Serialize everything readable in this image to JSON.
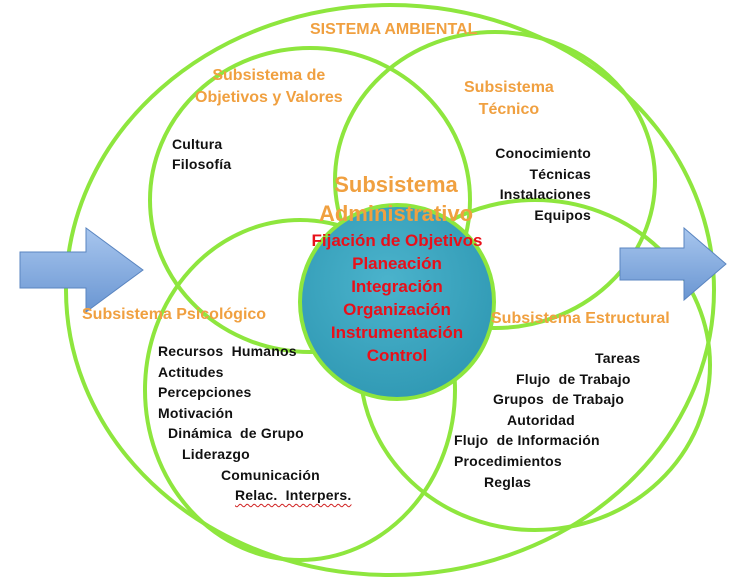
{
  "title": "SISTEMA AMBIENTAL",
  "subsystems": {
    "objetivos": {
      "line1": "Subsistema de",
      "line2": "Objetivos y Valores",
      "items": [
        "Cultura",
        "Filosofía"
      ]
    },
    "tecnico": {
      "line1": "Subsistema",
      "line2": "Técnico",
      "items": [
        "Conocimiento",
        "Técnicas",
        "Instalaciones",
        "Equipos"
      ]
    },
    "administrativo": {
      "line1": "Subsistema",
      "line2": "Administrativo",
      "items": [
        "Fijación de Objetivos",
        "Planeación",
        "Integración",
        "Organización",
        "Instrumentación",
        "Control"
      ]
    },
    "psicologico": {
      "label": "Subsistema Psicológico",
      "items": [
        "Recursos  Humanos",
        "Actitudes",
        "Percepciones",
        "Motivación",
        "Dinámica  de Grupo",
        "Liderazgo",
        "Comunicación",
        "Relac.  Interpers."
      ]
    },
    "estructural": {
      "label": "Subsistema Estructural",
      "items": [
        "Tareas",
        "Flujo  de Trabajo",
        "Grupos  de Trabajo",
        "Autoridad",
        "Flujo  de Información",
        "Procedimientos",
        "Reglas"
      ]
    }
  },
  "colors": {
    "ring": "#8ee63e",
    "arrow": "#7ba4d8",
    "center_fill": "#3aa6bf",
    "orange_text": "#f0a040",
    "red_text": "#e8101a"
  },
  "icons": [
    "input-arrow",
    "output-arrow"
  ]
}
